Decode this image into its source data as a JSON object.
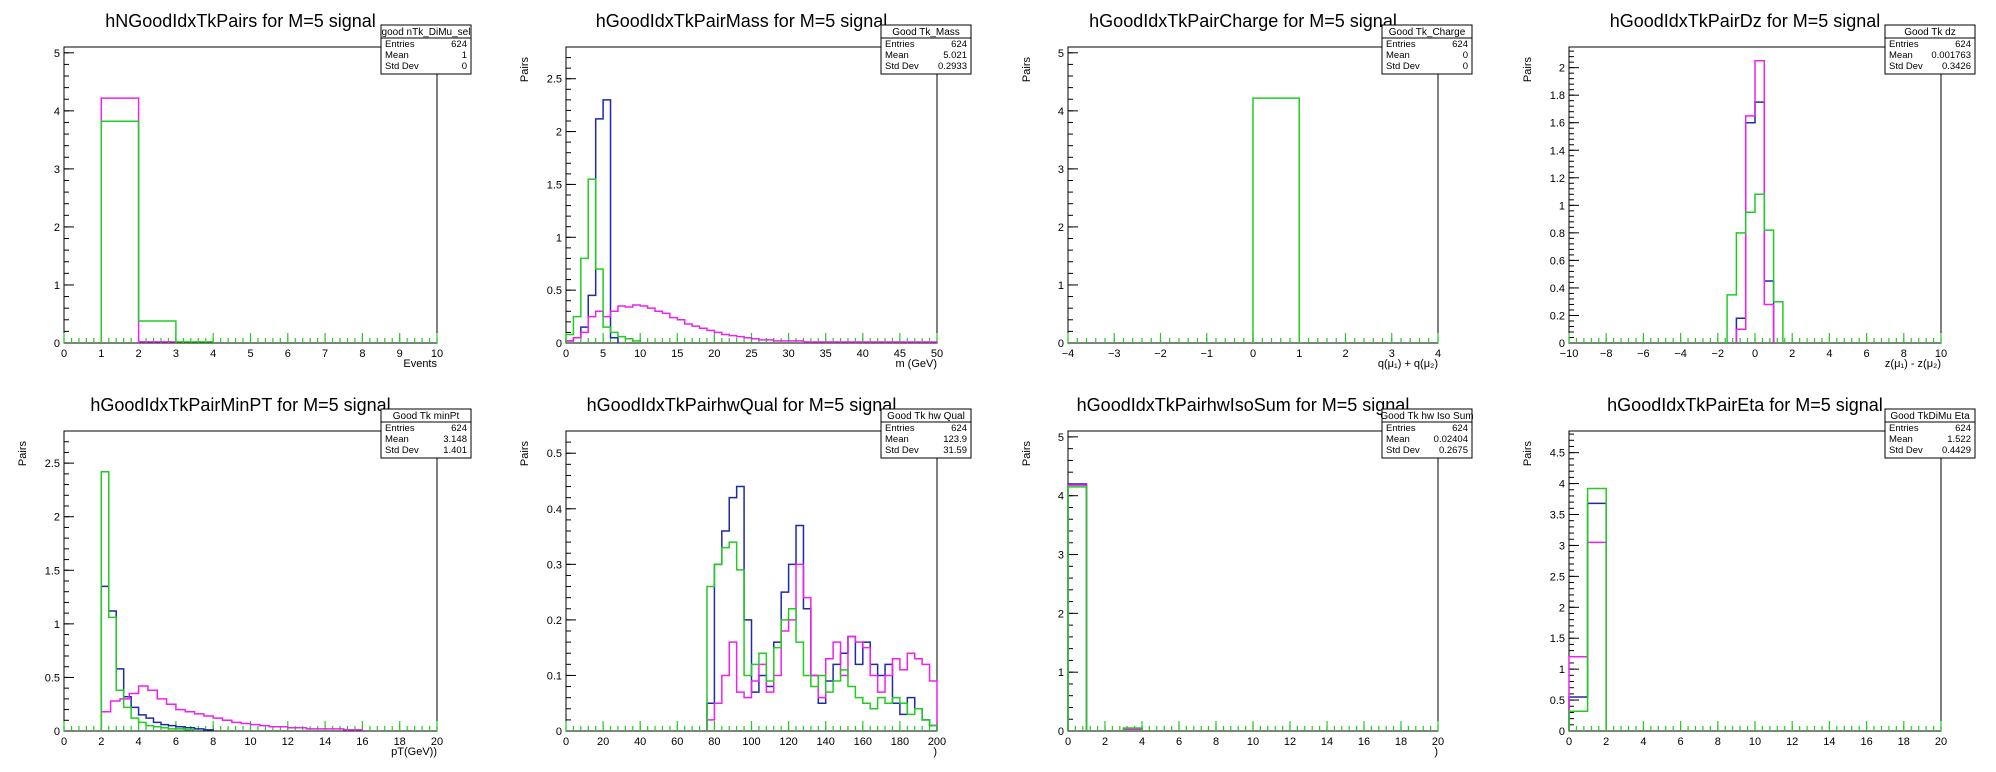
{
  "colors": {
    "blue": "#1f2aa8",
    "magenta": "#ee22ee",
    "green": "#22cc22",
    "axis": "#000000"
  },
  "chart_data": [
    {
      "type": "histogram",
      "title": "hNGoodIdxTkPairs for M=5 signal",
      "xlabel": "Events",
      "ylabel": "",
      "xlim": [
        0,
        10
      ],
      "ylim": [
        0,
        5.1
      ],
      "xticks": [
        0,
        1,
        2,
        3,
        4,
        5,
        6,
        7,
        8,
        9,
        10
      ],
      "yticks": [
        0,
        1,
        2,
        3,
        4,
        5
      ],
      "stats": {
        "name": "good nTk_DiMu_sel",
        "rows": [
          [
            "Entries",
            "624"
          ],
          [
            "Mean",
            "1"
          ],
          [
            "Std Dev",
            "0"
          ]
        ]
      },
      "series": [
        {
          "color": "magenta",
          "bins": [
            [
              1,
              2,
              4.22
            ],
            [
              2,
              3,
              0.02
            ]
          ]
        },
        {
          "color": "green",
          "bins": [
            [
              1,
              2,
              3.82
            ],
            [
              2,
              3,
              0.38
            ],
            [
              3,
              4,
              0.02
            ]
          ]
        }
      ]
    },
    {
      "type": "histogram",
      "title": "hGoodIdxTkPairMass for M=5 signal",
      "xlabel": "m (GeV)",
      "ylabel": "Pairs",
      "xlim": [
        0,
        50
      ],
      "ylim": [
        0,
        2.8
      ],
      "xticks": [
        0,
        5,
        10,
        15,
        20,
        25,
        30,
        35,
        40,
        45,
        50
      ],
      "yticks": [
        0,
        0.5,
        1,
        1.5,
        2,
        2.5
      ],
      "stats": {
        "name": "Good Tk_Mass",
        "rows": [
          [
            "Entries",
            "624"
          ],
          [
            "Mean",
            "5.021"
          ],
          [
            "Std Dev",
            "0.2933"
          ]
        ]
      },
      "series": [
        {
          "color": "blue",
          "edges": [
            0,
            1,
            2,
            3,
            4,
            5,
            6,
            7
          ],
          "values": [
            0.02,
            0.05,
            0.15,
            0.45,
            2.12,
            2.3,
            0.05
          ]
        },
        {
          "color": "magenta",
          "edges": [
            0,
            1,
            2,
            3,
            4,
            5,
            6,
            7,
            8,
            9,
            10,
            11,
            12,
            13,
            14,
            15,
            16,
            17,
            18,
            19,
            20,
            21,
            22,
            23,
            24,
            25,
            26,
            27,
            28,
            29,
            30,
            32,
            34,
            36,
            38,
            40,
            42,
            44,
            46,
            48,
            50
          ],
          "values": [
            0.02,
            0.05,
            0.1,
            0.25,
            0.3,
            0.25,
            0.3,
            0.35,
            0.34,
            0.36,
            0.35,
            0.33,
            0.3,
            0.28,
            0.24,
            0.22,
            0.18,
            0.16,
            0.14,
            0.12,
            0.1,
            0.08,
            0.07,
            0.06,
            0.05,
            0.04,
            0.03,
            0.03,
            0.02,
            0.02,
            0.02,
            0.01,
            0.01,
            0.01,
            0.01,
            0.01,
            0.01,
            0.01,
            0.01,
            0.01
          ]
        },
        {
          "color": "green",
          "edges": [
            0,
            1,
            2,
            3,
            4,
            5,
            6,
            7,
            8,
            9,
            10
          ],
          "values": [
            0.08,
            0.25,
            0.8,
            1.55,
            0.7,
            0.15,
            0.1,
            0.06,
            0.04,
            0.02
          ]
        }
      ]
    },
    {
      "type": "histogram",
      "title": "hGoodIdxTkPairCharge for M=5 signal",
      "xlabel": "q(μ₁) + q(μ₂)",
      "ylabel": "Pairs",
      "xlim": [
        -4,
        4
      ],
      "ylim": [
        0,
        5.1
      ],
      "xticks": [
        -4,
        -3,
        -2,
        -1,
        0,
        1,
        2,
        3,
        4
      ],
      "yticks": [
        0,
        1,
        2,
        3,
        4,
        5
      ],
      "stats": {
        "name": "Good Tk_Charge",
        "rows": [
          [
            "Entries",
            "624"
          ],
          [
            "Mean",
            "0"
          ],
          [
            "Std Dev",
            "0"
          ]
        ]
      },
      "series": [
        {
          "color": "green",
          "bins": [
            [
              0,
              1,
              4.22
            ]
          ]
        }
      ]
    },
    {
      "type": "histogram",
      "title": "hGoodIdxTkPairDz for M=5 signal",
      "xlabel": "z(μ₁) - z(μ₂)",
      "ylabel": "Pairs",
      "xlim": [
        -10,
        10
      ],
      "ylim": [
        0,
        2.15
      ],
      "xticks": [
        -10,
        -8,
        -6,
        -4,
        -2,
        0,
        2,
        4,
        6,
        8,
        10
      ],
      "yticks": [
        0,
        0.2,
        0.4,
        0.6,
        0.8,
        1,
        1.2,
        1.4,
        1.6,
        1.8,
        2
      ],
      "stats": {
        "name": "Good Tk dz",
        "rows": [
          [
            "Entries",
            "624"
          ],
          [
            "Mean",
            "0.001763"
          ],
          [
            "Std Dev",
            "0.3426"
          ]
        ]
      },
      "series": [
        {
          "color": "blue",
          "edges": [
            -1,
            -0.5,
            0,
            0.5,
            1
          ],
          "values": [
            0.18,
            1.6,
            1.75,
            0.45
          ]
        },
        {
          "color": "magenta",
          "edges": [
            -1,
            -0.5,
            0,
            0.5,
            1
          ],
          "values": [
            0.1,
            1.65,
            2.05,
            0.28
          ]
        },
        {
          "color": "green",
          "edges": [
            -1.5,
            -1,
            -0.5,
            0,
            0.5,
            1,
            1.5
          ],
          "values": [
            0.35,
            0.8,
            0.95,
            1.08,
            0.82,
            0.3
          ]
        }
      ]
    },
    {
      "type": "histogram",
      "title": "hGoodIdxTkPairMinPT for M=5 signal",
      "xlabel": "pT(GeV))",
      "ylabel": "Pairs",
      "xlim": [
        0,
        20
      ],
      "ylim": [
        0,
        2.8
      ],
      "xticks": [
        0,
        2,
        4,
        6,
        8,
        10,
        12,
        14,
        16,
        18,
        20
      ],
      "yticks": [
        0,
        0.5,
        1,
        1.5,
        2,
        2.5
      ],
      "stats": {
        "name": "Good Tk minPt",
        "rows": [
          [
            "Entries",
            "624"
          ],
          [
            "Mean",
            "3.148"
          ],
          [
            "Std Dev",
            "1.401"
          ]
        ]
      },
      "series": [
        {
          "color": "blue",
          "edges": [
            2,
            2.4,
            2.8,
            3.2,
            3.6,
            4,
            4.4,
            4.8,
            5.2,
            5.6,
            6,
            6.5,
            7,
            7.5,
            8
          ],
          "values": [
            1.35,
            1.12,
            0.58,
            0.32,
            0.22,
            0.15,
            0.12,
            0.08,
            0.06,
            0.05,
            0.04,
            0.03,
            0.02,
            0.01
          ]
        },
        {
          "color": "magenta",
          "edges": [
            2,
            2.5,
            3,
            3.5,
            4,
            4.5,
            5,
            5.5,
            6,
            6.5,
            7,
            7.5,
            8,
            8.5,
            9,
            9.5,
            10,
            10.5,
            11,
            12,
            13,
            14,
            15,
            16
          ],
          "values": [
            0.18,
            0.28,
            0.3,
            0.35,
            0.42,
            0.38,
            0.3,
            0.25,
            0.2,
            0.18,
            0.16,
            0.14,
            0.12,
            0.1,
            0.08,
            0.07,
            0.06,
            0.05,
            0.04,
            0.03,
            0.02,
            0.02,
            0.01
          ]
        },
        {
          "color": "green",
          "edges": [
            2,
            2.4,
            2.8,
            3.2,
            3.6,
            4,
            4.4,
            4.8,
            5.2,
            5.6,
            6,
            6.5,
            7
          ],
          "values": [
            2.42,
            1.06,
            0.38,
            0.22,
            0.12,
            0.08,
            0.05,
            0.04,
            0.03,
            0.02,
            0.02,
            0.01
          ]
        }
      ]
    },
    {
      "type": "histogram",
      "title": "hGoodIdxTkPairhwQual for M=5 signal",
      "xlabel": ")",
      "ylabel": "Pairs",
      "xlim": [
        0,
        200
      ],
      "ylim": [
        0,
        0.54
      ],
      "xticks": [
        0,
        20,
        40,
        60,
        80,
        100,
        120,
        140,
        160,
        180,
        200
      ],
      "yticks": [
        0,
        0.1,
        0.2,
        0.3,
        0.4,
        0.5
      ],
      "stats": {
        "name": "Good Tk hw Qual",
        "rows": [
          [
            "Entries",
            "624"
          ],
          [
            "Mean",
            "123.9"
          ],
          [
            "Std Dev",
            "31.59"
          ]
        ]
      },
      "series": [
        {
          "color": "blue",
          "edges": [
            76,
            80,
            84,
            88,
            92,
            96,
            100,
            104,
            108,
            112,
            116,
            120,
            124,
            128,
            132,
            136,
            140,
            144,
            148,
            152,
            156,
            160,
            164,
            168,
            172,
            176,
            180,
            184,
            188,
            192,
            196,
            200
          ],
          "values": [
            0.05,
            0.3,
            0.36,
            0.42,
            0.44,
            0.2,
            0.07,
            0.1,
            0.08,
            0.16,
            0.25,
            0.3,
            0.37,
            0.22,
            0.1,
            0.05,
            0.09,
            0.12,
            0.14,
            0.17,
            0.12,
            0.16,
            0.12,
            0.1,
            0.12,
            0.05,
            0.03,
            0.06,
            0.04,
            0.02,
            0.01
          ]
        },
        {
          "color": "magenta",
          "edges": [
            76,
            80,
            84,
            88,
            92,
            96,
            100,
            104,
            108,
            112,
            116,
            120,
            124,
            128,
            132,
            136,
            140,
            144,
            148,
            152,
            156,
            160,
            164,
            168,
            172,
            176,
            180,
            184,
            188,
            192,
            196,
            200
          ],
          "values": [
            0.02,
            0.05,
            0.1,
            0.16,
            0.07,
            0.06,
            0.09,
            0.12,
            0.07,
            0.1,
            0.18,
            0.2,
            0.3,
            0.24,
            0.1,
            0.06,
            0.13,
            0.16,
            0.1,
            0.17,
            0.16,
            0.15,
            0.1,
            0.07,
            0.1,
            0.13,
            0.11,
            0.14,
            0.13,
            0.12,
            0.09
          ]
        },
        {
          "color": "green",
          "edges": [
            76,
            80,
            84,
            88,
            92,
            96,
            100,
            104,
            108,
            112,
            116,
            120,
            124,
            128,
            132,
            136,
            140,
            144,
            148,
            152,
            156,
            160,
            164,
            168,
            172,
            176,
            180,
            184,
            188,
            192,
            196,
            200
          ],
          "values": [
            0.26,
            0.3,
            0.33,
            0.34,
            0.29,
            0.1,
            0.12,
            0.14,
            0.09,
            0.15,
            0.2,
            0.22,
            0.16,
            0.1,
            0.08,
            0.1,
            0.07,
            0.09,
            0.11,
            0.08,
            0.06,
            0.05,
            0.04,
            0.06,
            0.05,
            0.06,
            0.05,
            0.03,
            0.04,
            0.02,
            0.01
          ]
        }
      ]
    },
    {
      "type": "histogram",
      "title": "hGoodIdxTkPairhwIsoSum for M=5 signal",
      "xlabel": ")",
      "ylabel": "Pairs",
      "xlim": [
        0,
        20
      ],
      "ylim": [
        0,
        5.1
      ],
      "xticks": [
        0,
        2,
        4,
        6,
        8,
        10,
        12,
        14,
        16,
        18,
        20
      ],
      "yticks": [
        0,
        1,
        2,
        3,
        4,
        5
      ],
      "stats": {
        "name": "Good Tk hw Iso Sum",
        "rows": [
          [
            "Entries",
            "624"
          ],
          [
            "Mean",
            "0.02404"
          ],
          [
            "Std Dev",
            "0.2675"
          ]
        ]
      },
      "series": [
        {
          "color": "blue",
          "bins": [
            [
              0,
              1,
              4.2
            ],
            [
              3,
              4,
              0.04
            ]
          ]
        },
        {
          "color": "magenta",
          "bins": [
            [
              0,
              1,
              4.18
            ],
            [
              3,
              4,
              0.03
            ]
          ]
        },
        {
          "color": "green",
          "bins": [
            [
              0,
              1,
              4.15
            ],
            [
              3,
              4,
              0.05
            ]
          ]
        }
      ]
    },
    {
      "type": "histogram",
      "title": "hGoodIdxTkPairEta for M=5 signal",
      "xlabel": "",
      "ylabel": "Pairs",
      "xlim": [
        0,
        20
      ],
      "ylim": [
        0,
        4.85
      ],
      "xticks": [
        0,
        2,
        4,
        6,
        8,
        10,
        12,
        14,
        16,
        18,
        20
      ],
      "yticks": [
        0,
        0.5,
        1,
        1.5,
        2,
        2.5,
        3,
        3.5,
        4,
        4.5
      ],
      "stats": {
        "name": "Good TkDiMu Eta",
        "rows": [
          [
            "Entries",
            "624"
          ],
          [
            "Mean",
            "1.522"
          ],
          [
            "Std Dev",
            "0.4429"
          ]
        ]
      },
      "series": [
        {
          "color": "blue",
          "edges": [
            0,
            1,
            2
          ],
          "values": [
            0.55,
            3.68
          ]
        },
        {
          "color": "magenta",
          "edges": [
            0,
            1,
            2
          ],
          "values": [
            1.2,
            3.05
          ]
        },
        {
          "color": "green",
          "edges": [
            0,
            1,
            2
          ],
          "values": [
            0.32,
            3.92
          ]
        }
      ]
    }
  ]
}
